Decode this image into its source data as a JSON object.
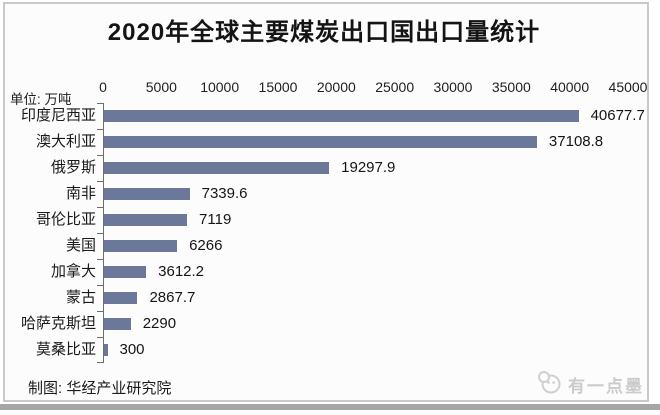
{
  "title": "2020年全球主要煤炭出口国出口量统计",
  "unit_label": "单位: 万吨",
  "footer": {
    "credit": "制图: 华经产业研究院"
  },
  "watermark": {
    "text": "有一点墨",
    "logo": "ink-face-logo"
  },
  "colors": {
    "bar": "#6c7899",
    "axis": "#6e6e6e",
    "text": "#1d1d1d",
    "watermark": "#cbcbcb",
    "frame_border": "#c9c9c9",
    "bottom_strip": "#a6a6a6"
  },
  "chart_data": {
    "type": "bar",
    "orientation": "horizontal",
    "title": "2020年全球主要煤炭出口国出口量统计",
    "xlabel": "",
    "ylabel": "",
    "unit": "万吨",
    "categories": [
      "印度尼西亚",
      "澳大利亚",
      "俄罗斯",
      "南非",
      "哥伦比亚",
      "美国",
      "加拿大",
      "蒙古",
      "哈萨克斯坦",
      "莫桑比亚"
    ],
    "values": [
      40677.7,
      37108.8,
      19297.9,
      7339.6,
      7119,
      6266,
      3612.2,
      2867.7,
      2290,
      300
    ],
    "value_labels": [
      "40677.7",
      "37108.8",
      "19297.9",
      "7339.6",
      "7119",
      "6266",
      "3612.2",
      "2867.7",
      "2290",
      "300"
    ],
    "x_ticks": [
      0,
      5000,
      10000,
      15000,
      20000,
      25000,
      30000,
      35000,
      40000,
      45000
    ],
    "xlim": [
      0,
      45000
    ],
    "grid": false,
    "axis_position": "top",
    "legend": false
  }
}
